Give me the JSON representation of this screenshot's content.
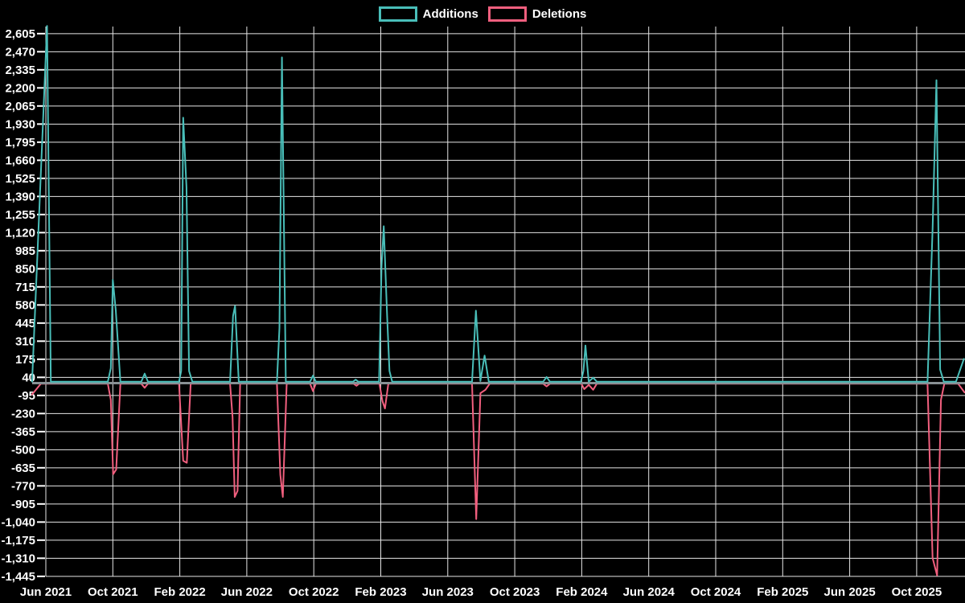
{
  "chart_data": {
    "type": "line",
    "title": "",
    "grid": true,
    "legend_position": "top-center",
    "background_color": "#000000",
    "colors": {
      "grid": "#e6e6e6",
      "tick": "#ffffff",
      "zero_line": "#899094",
      "text": "#ffffff",
      "additions": "#49beb9",
      "deletions": "#f15f7e"
    },
    "legend": [
      {
        "name": "Additions",
        "color": "#49beb9"
      },
      {
        "name": "Deletions",
        "color": "#f15f7e"
      }
    ],
    "x_axis": {
      "unit": "months since Jun 2021",
      "range_months": [
        -0.9,
        54.9
      ],
      "tick_month_offsets": [
        0,
        4,
        8,
        12,
        16,
        20,
        24,
        28,
        32,
        36,
        40,
        44,
        48,
        52
      ],
      "tick_labels": [
        "Jun 2021",
        "Oct 2021",
        "Feb 2022",
        "Jun 2022",
        "Oct 2022",
        "Feb 2023",
        "Jun 2023",
        "Oct 2023",
        "Feb 2024",
        "Jun 2024",
        "Oct 2024",
        "Feb 2025",
        "Jun 2025",
        "Oct 2025"
      ]
    },
    "y_axis": {
      "range": [
        -1445,
        2605
      ],
      "tick_step": 135,
      "tick_values": [
        2605,
        2470,
        2335,
        2200,
        2065,
        1930,
        1795,
        1660,
        1525,
        1390,
        1255,
        1120,
        985,
        850,
        715,
        580,
        445,
        310,
        175,
        40,
        -95,
        -230,
        -365,
        -500,
        -635,
        -770,
        -905,
        -1040,
        -1175,
        -1310,
        -1445
      ],
      "tick_labels": [
        "2,605",
        "2,470",
        "2,335",
        "2,200",
        "2,065",
        "1,930",
        "1,795",
        "1,660",
        "1,525",
        "1,390",
        "1,255",
        "1,120",
        "985",
        "850",
        "715",
        "580",
        "445",
        "310",
        "175",
        "40",
        "-95",
        "-230",
        "-365",
        "-500",
        "-635",
        "-770",
        "-905",
        "-1,040",
        "-1,175",
        "-1,310",
        "-1,445"
      ]
    },
    "series": [
      {
        "name": "Additions",
        "color": "#49beb9",
        "points": [
          [
            -0.82,
            0
          ],
          [
            0.07,
            2655
          ],
          [
            0.3,
            0
          ],
          [
            3.7,
            0
          ],
          [
            3.88,
            100
          ],
          [
            4.0,
            760
          ],
          [
            4.18,
            530
          ],
          [
            4.45,
            0
          ],
          [
            5.7,
            0
          ],
          [
            5.9,
            60
          ],
          [
            6.1,
            0
          ],
          [
            7.95,
            0
          ],
          [
            8.08,
            80
          ],
          [
            8.2,
            1970
          ],
          [
            8.4,
            1450
          ],
          [
            8.55,
            80
          ],
          [
            8.75,
            0
          ],
          [
            11.0,
            0
          ],
          [
            11.18,
            490
          ],
          [
            11.3,
            565
          ],
          [
            11.52,
            0
          ],
          [
            13.8,
            0
          ],
          [
            13.95,
            400
          ],
          [
            14.1,
            2420
          ],
          [
            14.33,
            0
          ],
          [
            15.78,
            0
          ],
          [
            15.95,
            45
          ],
          [
            16.12,
            0
          ],
          [
            18.35,
            0
          ],
          [
            18.5,
            15
          ],
          [
            18.65,
            0
          ],
          [
            19.9,
            0
          ],
          [
            20.05,
            865
          ],
          [
            20.18,
            1160
          ],
          [
            20.38,
            490
          ],
          [
            20.52,
            80
          ],
          [
            20.68,
            0
          ],
          [
            25.45,
            0
          ],
          [
            25.68,
            530
          ],
          [
            25.95,
            5
          ],
          [
            26.2,
            195
          ],
          [
            26.45,
            0
          ],
          [
            29.7,
            0
          ],
          [
            29.9,
            35
          ],
          [
            30.1,
            0
          ],
          [
            31.95,
            0
          ],
          [
            32.1,
            80
          ],
          [
            32.22,
            270
          ],
          [
            32.42,
            0
          ],
          [
            32.68,
            30
          ],
          [
            32.9,
            0
          ],
          [
            52.65,
            0
          ],
          [
            52.95,
            1140
          ],
          [
            53.18,
            2250
          ],
          [
            53.4,
            90
          ],
          [
            53.62,
            0
          ],
          [
            54.35,
            0
          ],
          [
            54.82,
            170
          ]
        ]
      },
      {
        "name": "Deletions",
        "color": "#f15f7e",
        "points": [
          [
            -0.82,
            -80
          ],
          [
            -0.3,
            0
          ],
          [
            3.7,
            0
          ],
          [
            3.88,
            -120
          ],
          [
            4.02,
            -675
          ],
          [
            4.2,
            -640
          ],
          [
            4.45,
            0
          ],
          [
            5.7,
            0
          ],
          [
            5.9,
            -30
          ],
          [
            6.1,
            0
          ],
          [
            7.95,
            0
          ],
          [
            8.2,
            -575
          ],
          [
            8.42,
            -590
          ],
          [
            8.65,
            0
          ],
          [
            11.0,
            0
          ],
          [
            11.15,
            -250
          ],
          [
            11.28,
            -845
          ],
          [
            11.45,
            -800
          ],
          [
            11.6,
            0
          ],
          [
            13.8,
            0
          ],
          [
            14.0,
            -680
          ],
          [
            14.15,
            -845
          ],
          [
            14.38,
            0
          ],
          [
            15.78,
            0
          ],
          [
            15.95,
            -55
          ],
          [
            16.12,
            0
          ],
          [
            18.38,
            0
          ],
          [
            18.55,
            -15
          ],
          [
            18.7,
            0
          ],
          [
            19.92,
            0
          ],
          [
            20.1,
            -130
          ],
          [
            20.25,
            -185
          ],
          [
            20.45,
            0
          ],
          [
            25.45,
            0
          ],
          [
            25.7,
            -1010
          ],
          [
            25.95,
            -70
          ],
          [
            26.25,
            -45
          ],
          [
            26.5,
            0
          ],
          [
            29.7,
            0
          ],
          [
            29.9,
            -20
          ],
          [
            30.1,
            0
          ],
          [
            31.98,
            0
          ],
          [
            32.15,
            -40
          ],
          [
            32.42,
            -8
          ],
          [
            32.68,
            -45
          ],
          [
            32.9,
            0
          ],
          [
            52.65,
            0
          ],
          [
            52.95,
            -1300
          ],
          [
            53.22,
            -1430
          ],
          [
            53.45,
            -120
          ],
          [
            53.65,
            0
          ],
          [
            54.48,
            0
          ],
          [
            54.86,
            -65
          ]
        ]
      }
    ]
  }
}
